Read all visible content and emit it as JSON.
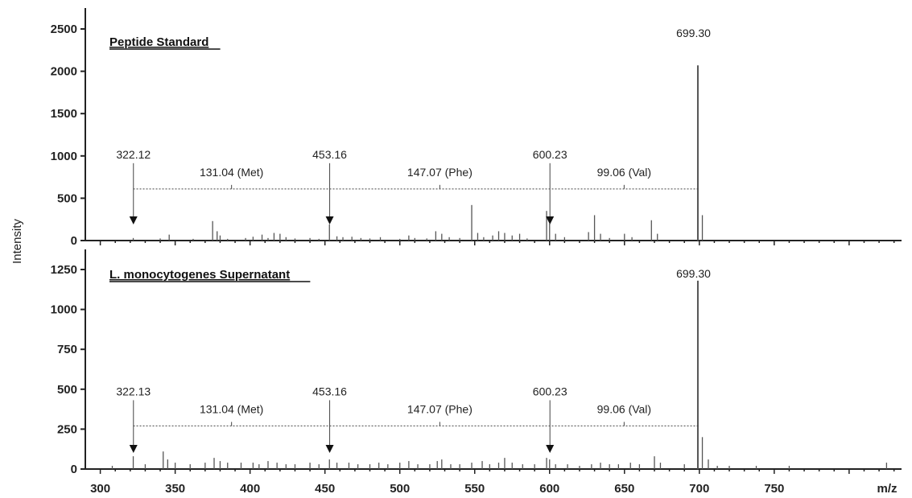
{
  "chart_data": {
    "type": "bar",
    "ylabel": "Intensity",
    "xlabel": "m/z",
    "xlim": [
      290,
      835
    ],
    "x_ticks": [
      300,
      350,
      400,
      450,
      500,
      550,
      600,
      650,
      700,
      750
    ],
    "colors": {
      "axis": "#222222",
      "peak": "#555555",
      "guide": "#444444"
    },
    "panels": [
      {
        "title": "Peptide Standard",
        "ylim": [
          0,
          2500
        ],
        "y_ticks": [
          0,
          500,
          1000,
          1500,
          2000,
          2500
        ],
        "ladder_level": 610,
        "peaks": [
          [
            322,
            30
          ],
          [
            340,
            25
          ],
          [
            346,
            70
          ],
          [
            362,
            20
          ],
          [
            375,
            230
          ],
          [
            378,
            110
          ],
          [
            380,
            60
          ],
          [
            385,
            20
          ],
          [
            397,
            30
          ],
          [
            402,
            45
          ],
          [
            408,
            70
          ],
          [
            412,
            30
          ],
          [
            416,
            90
          ],
          [
            420,
            80
          ],
          [
            424,
            40
          ],
          [
            430,
            25
          ],
          [
            440,
            30
          ],
          [
            446,
            20
          ],
          [
            453,
            190
          ],
          [
            458,
            50
          ],
          [
            462,
            40
          ],
          [
            468,
            45
          ],
          [
            474,
            30
          ],
          [
            480,
            25
          ],
          [
            487,
            40
          ],
          [
            500,
            20
          ],
          [
            506,
            60
          ],
          [
            510,
            30
          ],
          [
            518,
            25
          ],
          [
            524,
            110
          ],
          [
            528,
            80
          ],
          [
            533,
            40
          ],
          [
            540,
            30
          ],
          [
            548,
            420
          ],
          [
            552,
            90
          ],
          [
            556,
            40
          ],
          [
            562,
            60
          ],
          [
            566,
            110
          ],
          [
            570,
            90
          ],
          [
            575,
            60
          ],
          [
            580,
            80
          ],
          [
            585,
            25
          ],
          [
            598,
            350
          ],
          [
            600,
            200
          ],
          [
            604,
            80
          ],
          [
            610,
            40
          ],
          [
            626,
            100
          ],
          [
            630,
            300
          ],
          [
            634,
            80
          ],
          [
            640,
            30
          ],
          [
            650,
            80
          ],
          [
            655,
            40
          ],
          [
            668,
            240
          ],
          [
            672,
            80
          ],
          [
            699,
            2070
          ],
          [
            702,
            300
          ]
        ],
        "annotations": [
          {
            "label": "699.30",
            "x": 699.3
          },
          {
            "label": "600.23",
            "x": 600.23,
            "arrow": true
          },
          {
            "label": "453.16",
            "x": 453.16,
            "arrow": true
          },
          {
            "label": "322.12",
            "x": 322.12,
            "arrow": true
          },
          {
            "label": "131.04 (Met)",
            "x": 387.64
          },
          {
            "label": "147.07 (Phe)",
            "x": 526.7
          },
          {
            "label": "99.06 (Val)",
            "x": 649.77
          }
        ]
      },
      {
        "title": "L. monocytogenes  Supernatant",
        "ylim": [
          0,
          1250
        ],
        "y_ticks": [
          0,
          250,
          500,
          750,
          1000,
          1250
        ],
        "ladder_level": 270,
        "peaks": [
          [
            308,
            20
          ],
          [
            322,
            80
          ],
          [
            330,
            30
          ],
          [
            342,
            110
          ],
          [
            345,
            60
          ],
          [
            350,
            40
          ],
          [
            360,
            30
          ],
          [
            370,
            40
          ],
          [
            376,
            70
          ],
          [
            380,
            50
          ],
          [
            385,
            40
          ],
          [
            394,
            40
          ],
          [
            402,
            40
          ],
          [
            406,
            30
          ],
          [
            412,
            50
          ],
          [
            418,
            40
          ],
          [
            424,
            30
          ],
          [
            430,
            30
          ],
          [
            440,
            40
          ],
          [
            446,
            30
          ],
          [
            453,
            60
          ],
          [
            458,
            40
          ],
          [
            466,
            40
          ],
          [
            472,
            30
          ],
          [
            480,
            30
          ],
          [
            486,
            40
          ],
          [
            492,
            30
          ],
          [
            500,
            40
          ],
          [
            506,
            50
          ],
          [
            512,
            30
          ],
          [
            520,
            30
          ],
          [
            525,
            50
          ],
          [
            528,
            60
          ],
          [
            534,
            30
          ],
          [
            540,
            30
          ],
          [
            548,
            40
          ],
          [
            555,
            50
          ],
          [
            560,
            30
          ],
          [
            566,
            40
          ],
          [
            570,
            70
          ],
          [
            575,
            40
          ],
          [
            582,
            30
          ],
          [
            590,
            30
          ],
          [
            598,
            70
          ],
          [
            600,
            60
          ],
          [
            604,
            30
          ],
          [
            612,
            30
          ],
          [
            620,
            20
          ],
          [
            628,
            30
          ],
          [
            634,
            40
          ],
          [
            640,
            30
          ],
          [
            646,
            30
          ],
          [
            654,
            40
          ],
          [
            660,
            30
          ],
          [
            670,
            80
          ],
          [
            674,
            40
          ],
          [
            690,
            30
          ],
          [
            699,
            1180
          ],
          [
            702,
            200
          ],
          [
            706,
            60
          ],
          [
            712,
            20
          ],
          [
            720,
            20
          ],
          [
            738,
            20
          ],
          [
            760,
            20
          ],
          [
            825,
            40
          ]
        ],
        "annotations": [
          {
            "label": "699.30",
            "x": 699.3
          },
          {
            "label": "600.23",
            "x": 600.23,
            "arrow": true
          },
          {
            "label": "453.16",
            "x": 453.16,
            "arrow": true
          },
          {
            "label": "322.13",
            "x": 322.13,
            "arrow": true
          },
          {
            "label": "131.04 (Met)",
            "x": 387.64
          },
          {
            "label": "147.07 (Phe)",
            "x": 526.7
          },
          {
            "label": "99.06 (Val)",
            "x": 649.77
          }
        ]
      }
    ]
  }
}
